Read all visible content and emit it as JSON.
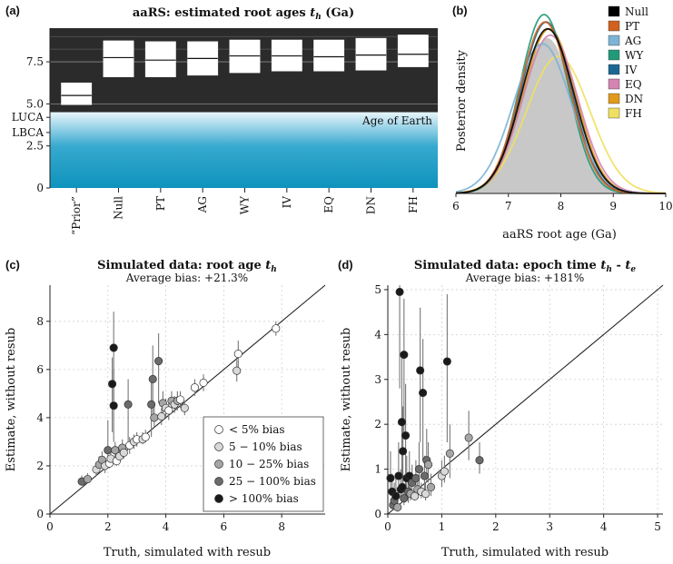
{
  "colors": {
    "panel_a_bg": "#2b2b2b",
    "earth_top": "#e8f5fb",
    "earth_bottom": "#0e93bd",
    "red_tick": "#d62728",
    "gray_fill": "#c8c8c8"
  },
  "panel_a": {
    "label": "(a)",
    "title_text": "aaRS: estimated root ages ",
    "title_var": "t",
    "title_sub": "h",
    "title_unit": " (Ga)",
    "earth_label": "Age of Earth",
    "yticks": [
      {
        "label": "7.5",
        "value": 7.5,
        "red": true
      },
      {
        "label": "5.0",
        "value": 5.0,
        "red": true
      },
      {
        "label": "LUCA",
        "value": 4.2,
        "red": false
      },
      {
        "label": "LBCA",
        "value": 3.3,
        "red": false
      },
      {
        "label": "2.5",
        "value": 2.5,
        "red": false
      },
      {
        "label": "0",
        "value": 0,
        "red": false
      }
    ],
    "chart_data": {
      "type": "box",
      "title": "aaRS: estimated root ages t_h (Ga)",
      "ylim": [
        0,
        9.5
      ],
      "earth_age": 4.5,
      "categories": [
        "“Prior”",
        "Null",
        "PT",
        "AG",
        "WY",
        "IV",
        "EQ",
        "DN",
        "FH"
      ],
      "q_low": [
        4.95,
        6.6,
        6.6,
        6.7,
        6.85,
        6.95,
        6.95,
        7.0,
        7.2
      ],
      "median": [
        5.5,
        7.75,
        7.6,
        7.7,
        7.85,
        7.85,
        7.8,
        7.9,
        7.95
      ],
      "q_high": [
        6.25,
        8.75,
        8.7,
        8.7,
        8.8,
        8.8,
        8.8,
        8.9,
        9.1
      ]
    }
  },
  "panel_b": {
    "label": "(b)",
    "ylabel": "Posterior density",
    "xlabel": "aaRS root age (Ga)",
    "chart_data": {
      "type": "area",
      "xlim": [
        6,
        10
      ],
      "xticks": [
        6,
        7,
        8,
        9,
        10
      ],
      "series": [
        {
          "name": "Null",
          "color": "#000000",
          "mean": 7.75,
          "sd": 0.5
        },
        {
          "name": "PT",
          "color": "#d0611f",
          "mean": 7.7,
          "sd": 0.48
        },
        {
          "name": "AG",
          "color": "#7cb3d6",
          "mean": 7.65,
          "sd": 0.55
        },
        {
          "name": "WY",
          "color": "#229a7a",
          "mean": 7.68,
          "sd": 0.46
        },
        {
          "name": "IV",
          "color": "#1b6792",
          "mean": 7.72,
          "sd": 0.48
        },
        {
          "name": "EQ",
          "color": "#d384b0",
          "mean": 7.8,
          "sd": 0.52
        },
        {
          "name": "DN",
          "color": "#e09a1a",
          "mean": 7.78,
          "sd": 0.5
        },
        {
          "name": "FH",
          "color": "#f0e060",
          "mean": 7.95,
          "sd": 0.6
        }
      ]
    }
  },
  "panel_c": {
    "label": "(c)",
    "title_text": "Simulated data: root age ",
    "title_var": "t",
    "title_sub": "h",
    "subtitle": "Average bias: +21.3%",
    "xlabel": "Truth, simulated with resub",
    "ylabel": "Estimate, without resub",
    "legend": [
      {
        "label": "< 5% bias",
        "color": "#ffffff"
      },
      {
        "label": "5 − 10% bias",
        "color": "#d9d9d9"
      },
      {
        "label": "10 − 25% bias",
        "color": "#a6a6a6"
      },
      {
        "label": "25 − 100% bias",
        "color": "#6b6b6b"
      },
      {
        "label": "> 100% bias",
        "color": "#1a1a1a"
      }
    ],
    "chart_data": {
      "type": "scatter",
      "xlim": [
        0,
        9.5
      ],
      "ylim": [
        0,
        9.5
      ],
      "xticks": [
        0,
        2,
        4,
        6,
        8
      ],
      "yticks": [
        0,
        2,
        4,
        6,
        8
      ],
      "bins": [
        "< 5%",
        "5-10%",
        "10-25%",
        "25-100%",
        "> 100%"
      ],
      "points": [
        {
          "x": 1.1,
          "y": 1.35,
          "lo": 1.2,
          "hi": 1.6,
          "bin": 3
        },
        {
          "x": 1.3,
          "y": 1.45,
          "lo": 1.3,
          "hi": 1.7,
          "bin": 2
        },
        {
          "x": 1.6,
          "y": 1.85,
          "lo": 1.6,
          "hi": 2.1,
          "bin": 1
        },
        {
          "x": 1.7,
          "y": 2.05,
          "lo": 1.8,
          "hi": 2.4,
          "bin": 2
        },
        {
          "x": 1.8,
          "y": 2.25,
          "lo": 1.9,
          "hi": 2.6,
          "bin": 2
        },
        {
          "x": 1.9,
          "y": 2.0,
          "lo": 1.7,
          "hi": 2.3,
          "bin": 1
        },
        {
          "x": 2.0,
          "y": 2.65,
          "lo": 2.2,
          "hi": 3.9,
          "bin": 3
        },
        {
          "x": 2.05,
          "y": 2.1,
          "lo": 1.9,
          "hi": 2.3,
          "bin": 0
        },
        {
          "x": 2.1,
          "y": 2.3,
          "lo": 2.0,
          "hi": 2.6,
          "bin": 1
        },
        {
          "x": 2.15,
          "y": 5.4,
          "lo": 3.4,
          "hi": 6.5,
          "bin": 4
        },
        {
          "x": 2.2,
          "y": 6.9,
          "lo": 4.7,
          "hi": 8.4,
          "bin": 4
        },
        {
          "x": 2.2,
          "y": 4.5,
          "lo": 3.0,
          "hi": 6.0,
          "bin": 4
        },
        {
          "x": 2.25,
          "y": 2.65,
          "lo": 2.3,
          "hi": 3.0,
          "bin": 2
        },
        {
          "x": 2.3,
          "y": 2.2,
          "lo": 2.0,
          "hi": 2.5,
          "bin": 0
        },
        {
          "x": 2.4,
          "y": 2.4,
          "lo": 2.2,
          "hi": 2.7,
          "bin": 1
        },
        {
          "x": 2.5,
          "y": 2.75,
          "lo": 2.4,
          "hi": 3.1,
          "bin": 2
        },
        {
          "x": 2.55,
          "y": 2.55,
          "lo": 2.3,
          "hi": 2.8,
          "bin": 1
        },
        {
          "x": 2.7,
          "y": 4.55,
          "lo": 2.8,
          "hi": 5.6,
          "bin": 3
        },
        {
          "x": 2.75,
          "y": 2.85,
          "lo": 2.5,
          "hi": 3.2,
          "bin": 0
        },
        {
          "x": 2.9,
          "y": 3.0,
          "lo": 2.7,
          "hi": 3.3,
          "bin": 1
        },
        {
          "x": 3.0,
          "y": 3.1,
          "lo": 2.8,
          "hi": 3.4,
          "bin": 0
        },
        {
          "x": 3.2,
          "y": 3.1,
          "lo": 2.9,
          "hi": 3.4,
          "bin": 1
        },
        {
          "x": 3.3,
          "y": 3.2,
          "lo": 3.0,
          "hi": 3.5,
          "bin": 0
        },
        {
          "x": 3.5,
          "y": 4.55,
          "lo": 3.2,
          "hi": 5.5,
          "bin": 3
        },
        {
          "x": 3.55,
          "y": 5.6,
          "lo": 4.1,
          "hi": 7.0,
          "bin": 3
        },
        {
          "x": 3.6,
          "y": 4.0,
          "lo": 3.6,
          "hi": 4.5,
          "bin": 2
        },
        {
          "x": 3.75,
          "y": 6.35,
          "lo": 4.6,
          "hi": 7.5,
          "bin": 3
        },
        {
          "x": 3.85,
          "y": 4.05,
          "lo": 3.7,
          "hi": 4.4,
          "bin": 1
        },
        {
          "x": 3.9,
          "y": 4.6,
          "lo": 4.2,
          "hi": 5.1,
          "bin": 2
        },
        {
          "x": 4.0,
          "y": 4.4,
          "lo": 4.0,
          "hi": 4.8,
          "bin": 1
        },
        {
          "x": 4.1,
          "y": 4.3,
          "lo": 3.9,
          "hi": 4.7,
          "bin": 0
        },
        {
          "x": 4.2,
          "y": 4.7,
          "lo": 4.3,
          "hi": 5.1,
          "bin": 2
        },
        {
          "x": 4.3,
          "y": 4.55,
          "lo": 4.2,
          "hi": 4.9,
          "bin": 1
        },
        {
          "x": 4.4,
          "y": 4.7,
          "lo": 4.3,
          "hi": 5.1,
          "bin": 2
        },
        {
          "x": 4.5,
          "y": 4.75,
          "lo": 4.4,
          "hi": 5.1,
          "bin": 0
        },
        {
          "x": 4.65,
          "y": 4.4,
          "lo": 4.1,
          "hi": 4.7,
          "bin": 1
        },
        {
          "x": 5.0,
          "y": 5.25,
          "lo": 4.9,
          "hi": 5.6,
          "bin": 0
        },
        {
          "x": 5.3,
          "y": 5.45,
          "lo": 5.1,
          "hi": 5.8,
          "bin": 0
        },
        {
          "x": 6.45,
          "y": 5.95,
          "lo": 5.5,
          "hi": 6.4,
          "bin": 1
        },
        {
          "x": 6.5,
          "y": 6.65,
          "lo": 6.1,
          "hi": 7.2,
          "bin": 0
        },
        {
          "x": 7.8,
          "y": 7.7,
          "lo": 7.4,
          "hi": 8.0,
          "bin": 0
        }
      ]
    }
  },
  "panel_d": {
    "label": "(d)",
    "title_text": "Simulated data: epoch time ",
    "title_var1": "t",
    "title_sub1": "h",
    "title_mid": " - ",
    "title_var2": "t",
    "title_sub2": "e",
    "subtitle": "Average bias: +181%",
    "xlabel": "Truth, simulated with resub",
    "ylabel": "Estimate, without resub",
    "chart_data": {
      "type": "scatter",
      "xlim": [
        0,
        5.1
      ],
      "ylim": [
        0,
        5.1
      ],
      "xticks": [
        0,
        1,
        2,
        3,
        4,
        5
      ],
      "yticks": [
        0,
        1,
        2,
        3,
        4,
        5
      ],
      "points": [
        {
          "x": 0.05,
          "y": 0.8,
          "lo": 0.4,
          "hi": 1.4,
          "bin": 4
        },
        {
          "x": 0.08,
          "y": 0.5,
          "lo": 0.2,
          "hi": 0.9,
          "bin": 4
        },
        {
          "x": 0.1,
          "y": 0.2,
          "lo": 0.1,
          "hi": 0.4,
          "bin": 3
        },
        {
          "x": 0.12,
          "y": 0.3,
          "lo": 0.1,
          "hi": 0.7,
          "bin": 3
        },
        {
          "x": 0.15,
          "y": 0.4,
          "lo": 0.2,
          "hi": 0.8,
          "bin": 4
        },
        {
          "x": 0.18,
          "y": 0.15,
          "lo": 0.05,
          "hi": 0.4,
          "bin": 2
        },
        {
          "x": 0.2,
          "y": 0.85,
          "lo": 0.4,
          "hi": 1.6,
          "bin": 4
        },
        {
          "x": 0.22,
          "y": 4.95,
          "lo": 2.8,
          "hi": 5.1,
          "bin": 4
        },
        {
          "x": 0.24,
          "y": 0.55,
          "lo": 0.3,
          "hi": 1.0,
          "bin": 4
        },
        {
          "x": 0.26,
          "y": 2.05,
          "lo": 0.8,
          "hi": 3.5,
          "bin": 4
        },
        {
          "x": 0.27,
          "y": 0.6,
          "lo": 0.3,
          "hi": 1.1,
          "bin": 4
        },
        {
          "x": 0.28,
          "y": 1.4,
          "lo": 0.6,
          "hi": 2.4,
          "bin": 4
        },
        {
          "x": 0.3,
          "y": 3.55,
          "lo": 1.8,
          "hi": 4.8,
          "bin": 4
        },
        {
          "x": 0.3,
          "y": 0.35,
          "lo": 0.2,
          "hi": 0.6,
          "bin": 3
        },
        {
          "x": 0.33,
          "y": 1.75,
          "lo": 0.6,
          "hi": 2.9,
          "bin": 4
        },
        {
          "x": 0.35,
          "y": 0.8,
          "lo": 0.4,
          "hi": 1.3,
          "bin": 4
        },
        {
          "x": 0.38,
          "y": 0.5,
          "lo": 0.25,
          "hi": 0.9,
          "bin": 3
        },
        {
          "x": 0.4,
          "y": 0.85,
          "lo": 0.5,
          "hi": 1.4,
          "bin": 4
        },
        {
          "x": 0.42,
          "y": 0.45,
          "lo": 0.3,
          "hi": 0.7,
          "bin": 2
        },
        {
          "x": 0.45,
          "y": 0.7,
          "lo": 0.4,
          "hi": 1.1,
          "bin": 3
        },
        {
          "x": 0.5,
          "y": 0.4,
          "lo": 0.3,
          "hi": 0.6,
          "bin": 1
        },
        {
          "x": 0.52,
          "y": 0.8,
          "lo": 0.5,
          "hi": 1.2,
          "bin": 3
        },
        {
          "x": 0.55,
          "y": 0.55,
          "lo": 0.4,
          "hi": 0.8,
          "bin": 2
        },
        {
          "x": 0.58,
          "y": 1.0,
          "lo": 0.6,
          "hi": 1.6,
          "bin": 3
        },
        {
          "x": 0.6,
          "y": 3.2,
          "lo": 1.6,
          "hi": 4.6,
          "bin": 4
        },
        {
          "x": 0.62,
          "y": 0.5,
          "lo": 0.35,
          "hi": 0.7,
          "bin": 1
        },
        {
          "x": 0.65,
          "y": 2.7,
          "lo": 1.2,
          "hi": 3.9,
          "bin": 4
        },
        {
          "x": 0.68,
          "y": 0.85,
          "lo": 0.5,
          "hi": 1.3,
          "bin": 3
        },
        {
          "x": 0.7,
          "y": 0.45,
          "lo": 0.3,
          "hi": 0.7,
          "bin": 1
        },
        {
          "x": 0.72,
          "y": 1.2,
          "lo": 0.7,
          "hi": 1.9,
          "bin": 3
        },
        {
          "x": 0.75,
          "y": 1.1,
          "lo": 0.7,
          "hi": 1.6,
          "bin": 2
        },
        {
          "x": 0.8,
          "y": 0.6,
          "lo": 0.4,
          "hi": 0.9,
          "bin": 2
        },
        {
          "x": 1.0,
          "y": 0.85,
          "lo": 0.6,
          "hi": 1.2,
          "bin": 1
        },
        {
          "x": 1.05,
          "y": 0.95,
          "lo": 0.7,
          "hi": 1.3,
          "bin": 1
        },
        {
          "x": 1.1,
          "y": 3.4,
          "lo": 1.6,
          "hi": 4.9,
          "bin": 4
        },
        {
          "x": 1.15,
          "y": 1.35,
          "lo": 0.8,
          "hi": 2.0,
          "bin": 2
        },
        {
          "x": 1.5,
          "y": 1.7,
          "lo": 1.2,
          "hi": 2.3,
          "bin": 2
        },
        {
          "x": 1.7,
          "y": 1.2,
          "lo": 0.9,
          "hi": 1.6,
          "bin": 3
        }
      ]
    }
  }
}
